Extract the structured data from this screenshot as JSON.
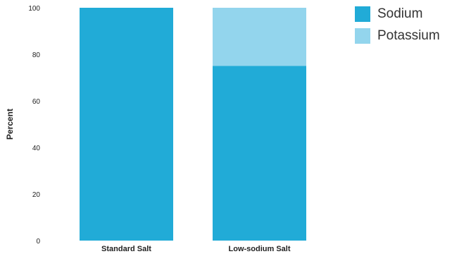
{
  "chart_data": {
    "type": "bar",
    "stacked": true,
    "title": "",
    "xlabel": "",
    "ylabel": "Percent",
    "ylim": [
      0,
      100
    ],
    "yticks": [
      0,
      20,
      40,
      60,
      80,
      100
    ],
    "categories": [
      "Standard Salt",
      "Low-sodium Salt"
    ],
    "series": [
      {
        "name": "Sodium",
        "values": [
          100,
          75
        ],
        "color": "#21abd7"
      },
      {
        "name": "Potassium",
        "values": [
          0,
          25
        ],
        "color": "#93d5ed"
      }
    ],
    "grid": false,
    "legend_position": "top-right"
  }
}
